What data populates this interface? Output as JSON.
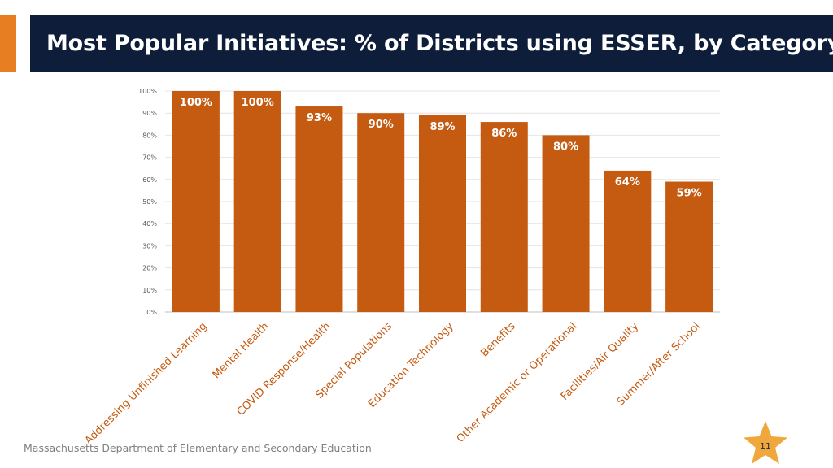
{
  "header": {
    "title": "Most Popular Initiatives: % of Districts using ESSER, by Category"
  },
  "footer": {
    "org": "Massachusetts Department of Elementary and Secondary Education"
  },
  "page": {
    "number": "11"
  },
  "colors": {
    "bar": "#c55a11",
    "title_bg": "#0e1e3a",
    "accent": "#e87e22",
    "star": "#f0a83c"
  },
  "chart_data": {
    "type": "bar",
    "title": "",
    "xlabel": "",
    "ylabel": "",
    "ylim": [
      0,
      100
    ],
    "y_ticks": [
      "0%",
      "10%",
      "20%",
      "30%",
      "40%",
      "50%",
      "60%",
      "70%",
      "80%",
      "90%",
      "100%"
    ],
    "grid": true,
    "categories": [
      "Addressing Unfinished Learning",
      "Mental Health",
      "COVID Response/Health",
      "Special Populations",
      "Education Technology",
      "Benefits",
      "Other Academic or Operational",
      "Facilities/Air Quality",
      "Summer/After School"
    ],
    "values": [
      100,
      100,
      93,
      90,
      89,
      86,
      80,
      64,
      59
    ],
    "value_labels": [
      "100%",
      "100%",
      "93%",
      "90%",
      "89%",
      "86%",
      "80%",
      "64%",
      "59%"
    ]
  }
}
